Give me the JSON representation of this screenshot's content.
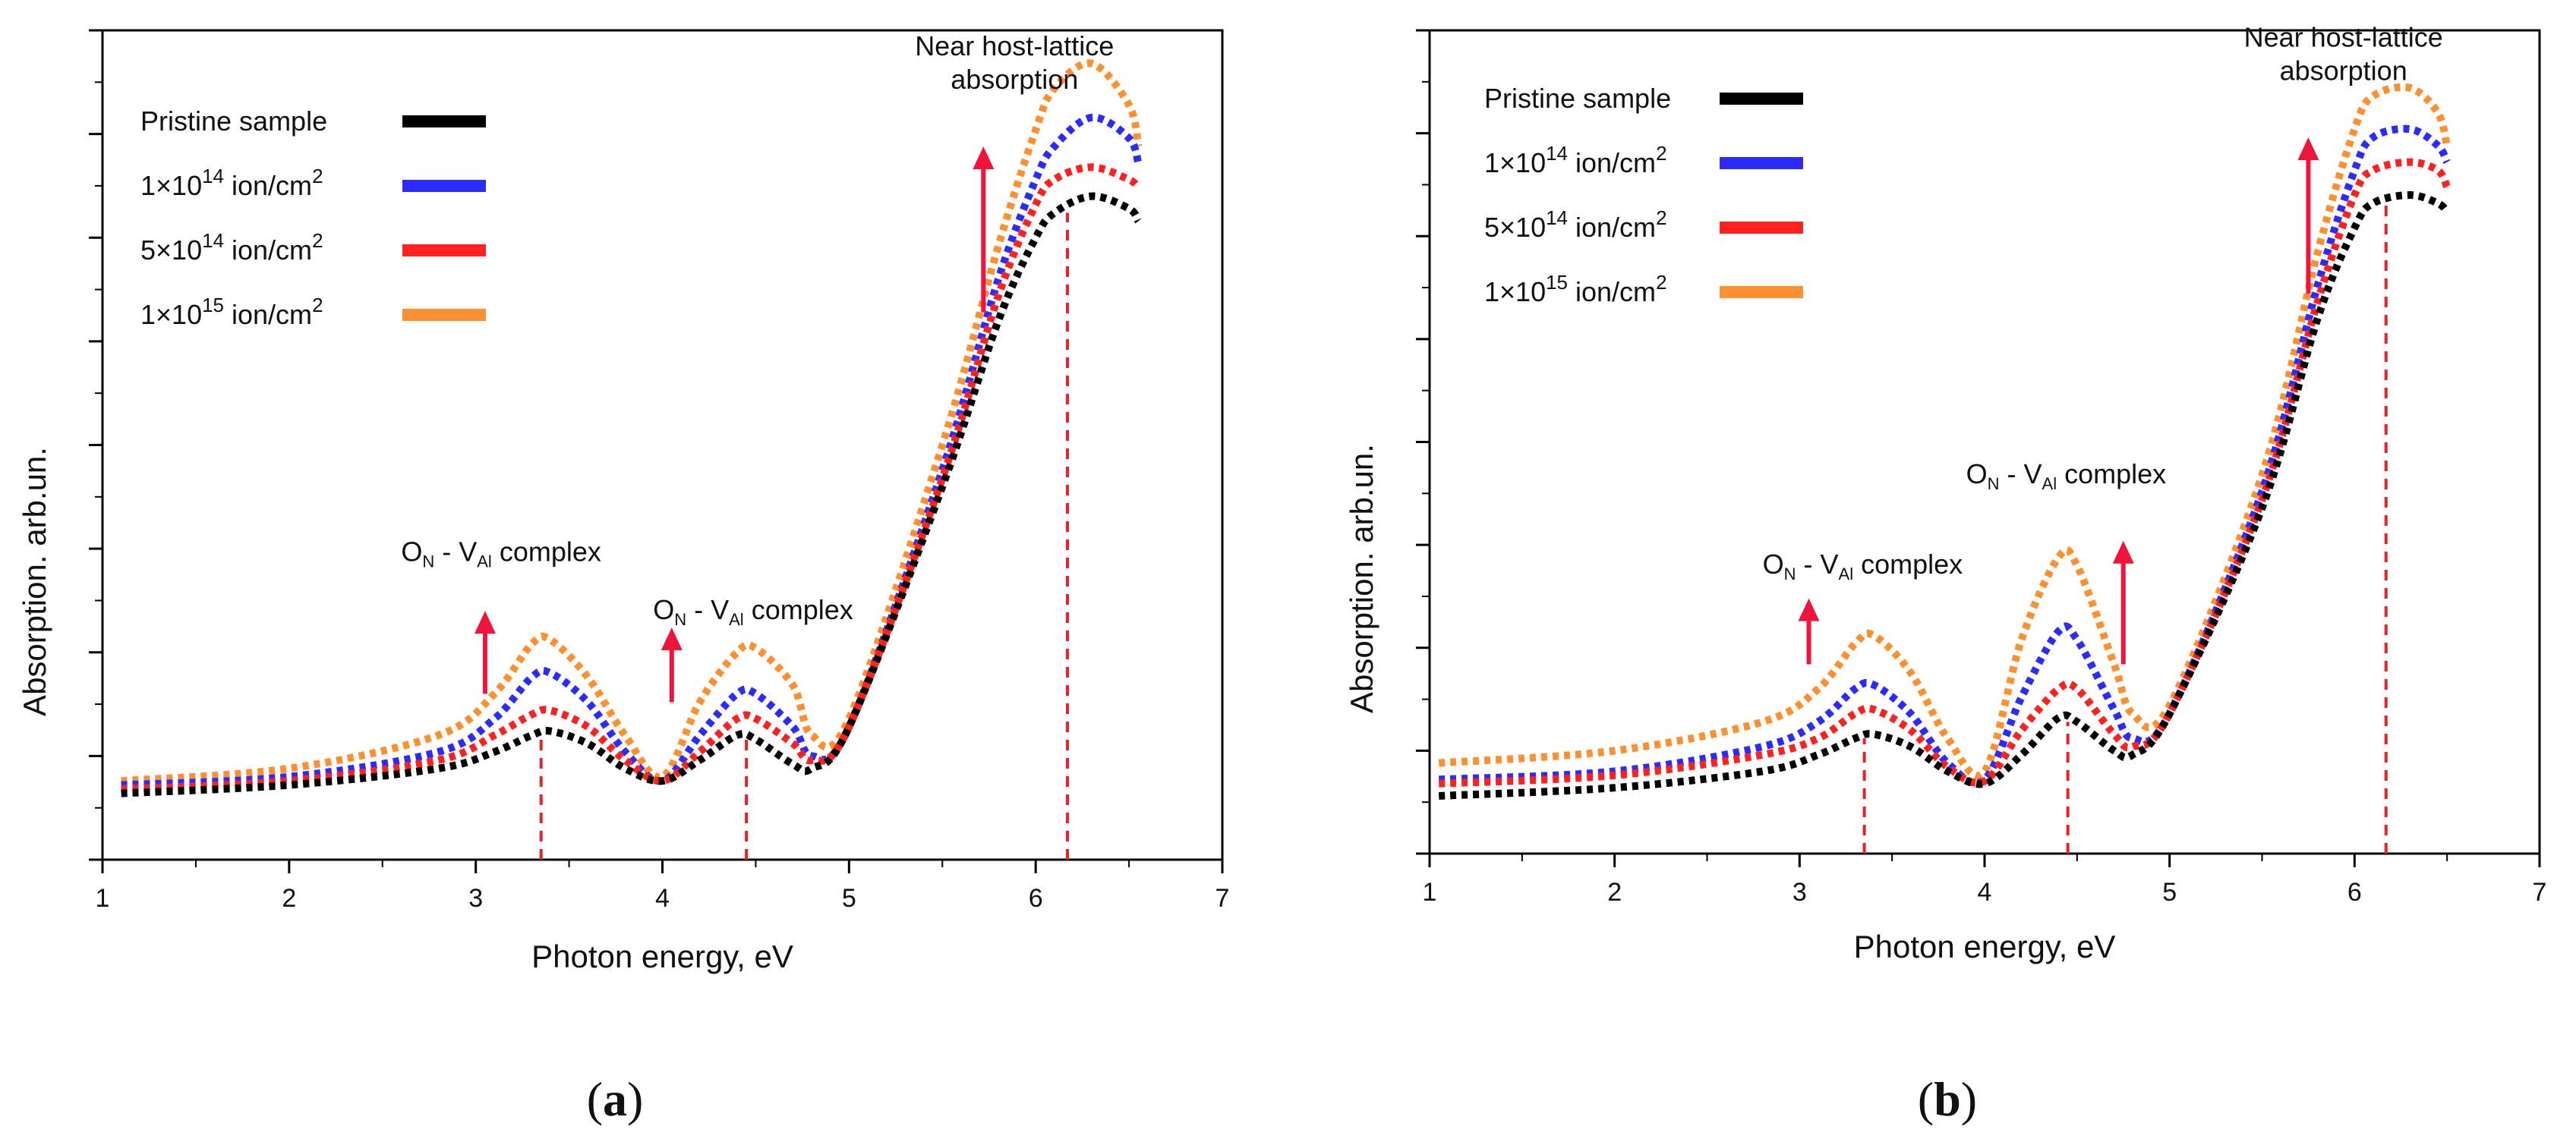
{
  "chart_data": [
    {
      "type": "line",
      "panel_label": "(a)",
      "title": "",
      "xlabel": "Photon energy, eV",
      "ylabel": "Absorption. arb.un.",
      "xlim": [
        1,
        7
      ],
      "ylim": [
        0,
        1
      ],
      "x_ticks": [
        1,
        2,
        3,
        4,
        5,
        6,
        7
      ],
      "legend_position": "top-left",
      "series": [
        {
          "name": "Pristine sample",
          "color": "#000000",
          "x": [
            1.1,
            2.0,
            2.8,
            3.1,
            3.3,
            3.4,
            3.6,
            3.8,
            4.0,
            4.2,
            4.4,
            4.5,
            4.7,
            4.8,
            5.0,
            5.5,
            5.8,
            6.0,
            6.1,
            6.3,
            6.5,
            6.55
          ],
          "y": [
            0.08,
            0.09,
            0.11,
            0.13,
            0.15,
            0.155,
            0.14,
            0.11,
            0.095,
            0.12,
            0.15,
            0.145,
            0.115,
            0.11,
            0.16,
            0.45,
            0.65,
            0.75,
            0.78,
            0.8,
            0.785,
            0.77
          ]
        },
        {
          "name": "1×10^14 ion/cm^2",
          "color": "#2b2bff",
          "x": [
            1.1,
            2.0,
            2.8,
            3.1,
            3.3,
            3.4,
            3.6,
            3.8,
            4.0,
            4.2,
            4.4,
            4.5,
            4.7,
            4.8,
            5.0,
            5.5,
            5.8,
            6.0,
            6.1,
            6.3,
            6.5,
            6.55
          ],
          "y": [
            0.09,
            0.1,
            0.13,
            0.17,
            0.22,
            0.225,
            0.19,
            0.13,
            0.095,
            0.15,
            0.2,
            0.2,
            0.16,
            0.125,
            0.16,
            0.47,
            0.7,
            0.82,
            0.86,
            0.895,
            0.87,
            0.84
          ]
        },
        {
          "name": "5×10^14 ion/cm^2",
          "color": "#ff2020",
          "x": [
            1.1,
            2.0,
            2.8,
            3.1,
            3.3,
            3.4,
            3.6,
            3.8,
            4.0,
            4.2,
            4.4,
            4.5,
            4.7,
            4.8,
            5.0,
            5.5,
            5.8,
            6.0,
            6.1,
            6.3,
            6.5,
            6.55
          ],
          "y": [
            0.085,
            0.095,
            0.12,
            0.15,
            0.175,
            0.18,
            0.16,
            0.12,
            0.095,
            0.13,
            0.17,
            0.17,
            0.14,
            0.12,
            0.16,
            0.46,
            0.68,
            0.79,
            0.82,
            0.835,
            0.82,
            0.81
          ]
        },
        {
          "name": "1×10^15 ion/cm^2",
          "color": "#ff9030",
          "x": [
            1.1,
            2.0,
            2.8,
            3.1,
            3.3,
            3.4,
            3.6,
            3.8,
            4.0,
            4.2,
            4.4,
            4.5,
            4.7,
            4.8,
            5.0,
            5.5,
            5.8,
            6.0,
            6.1,
            6.3,
            6.5,
            6.55
          ],
          "y": [
            0.095,
            0.11,
            0.15,
            0.2,
            0.26,
            0.265,
            0.22,
            0.15,
            0.1,
            0.19,
            0.25,
            0.255,
            0.21,
            0.15,
            0.17,
            0.5,
            0.74,
            0.88,
            0.93,
            0.96,
            0.91,
            0.86
          ]
        }
      ],
      "annotations": [
        {
          "kind": "label",
          "text_main": "O",
          "text_sub1": "N",
          "text_mid": " - V",
          "text_sub2": "Al",
          "text_end": " complex",
          "x": 2.6,
          "y": 0.36
        },
        {
          "kind": "label",
          "text_main": "O",
          "text_sub1": "N",
          "text_mid": " - V",
          "text_sub2": "Al",
          "text_end": " complex",
          "x": 3.95,
          "y": 0.29
        },
        {
          "kind": "label",
          "text_line1": "Near host-lattice",
          "text_line2": "absorption",
          "x": 5.5,
          "y": 0.97
        },
        {
          "kind": "arrow",
          "x": 3.05,
          "y_from": 0.2,
          "y_to": 0.3
        },
        {
          "kind": "arrow",
          "x": 4.05,
          "y_from": 0.19,
          "y_to": 0.28
        },
        {
          "kind": "arrow",
          "x": 5.72,
          "y_from": 0.66,
          "y_to": 0.86
        },
        {
          "kind": "vline",
          "x": 3.35,
          "y_to": 0.15
        },
        {
          "kind": "vline",
          "x": 4.45,
          "y_to": 0.15
        },
        {
          "kind": "vline",
          "x": 6.17,
          "y_to": 0.78
        }
      ]
    },
    {
      "type": "line",
      "panel_label": "(b)",
      "title": "",
      "xlabel": "Photon energy, eV",
      "ylabel": "Absorption. arb.un.",
      "xlim": [
        1,
        7
      ],
      "ylim": [
        0,
        1
      ],
      "x_ticks": [
        1,
        2,
        3,
        4,
        5,
        6,
        7
      ],
      "legend_position": "top-left",
      "series": [
        {
          "name": "Pristine sample",
          "color": "#000000",
          "x": [
            1.05,
            2.0,
            2.8,
            3.1,
            3.3,
            3.4,
            3.6,
            3.8,
            4.0,
            4.2,
            4.4,
            4.5,
            4.7,
            4.8,
            5.0,
            5.5,
            5.8,
            6.0,
            6.1,
            6.3,
            6.45,
            6.5
          ],
          "y": [
            0.07,
            0.08,
            0.1,
            0.12,
            0.14,
            0.145,
            0.13,
            0.1,
            0.085,
            0.12,
            0.165,
            0.16,
            0.125,
            0.12,
            0.17,
            0.42,
            0.65,
            0.76,
            0.79,
            0.8,
            0.79,
            0.78
          ]
        },
        {
          "name": "1×10^14 ion/cm^2",
          "color": "#2b2bff",
          "x": [
            1.05,
            2.0,
            2.8,
            3.1,
            3.3,
            3.4,
            3.6,
            3.8,
            4.0,
            4.2,
            4.4,
            4.5,
            4.7,
            4.8,
            5.0,
            5.5,
            5.8,
            6.0,
            6.1,
            6.3,
            6.45,
            6.5
          ],
          "y": [
            0.09,
            0.1,
            0.13,
            0.16,
            0.2,
            0.205,
            0.17,
            0.11,
            0.09,
            0.19,
            0.27,
            0.26,
            0.175,
            0.14,
            0.17,
            0.44,
            0.69,
            0.83,
            0.87,
            0.88,
            0.86,
            0.84
          ]
        },
        {
          "name": "5×10^14 ion/cm^2",
          "color": "#ff2020",
          "x": [
            1.05,
            2.0,
            2.8,
            3.1,
            3.3,
            3.4,
            3.6,
            3.8,
            4.0,
            4.2,
            4.4,
            4.5,
            4.7,
            4.8,
            5.0,
            5.5,
            5.8,
            6.0,
            6.1,
            6.3,
            6.45,
            6.5
          ],
          "y": [
            0.085,
            0.095,
            0.12,
            0.14,
            0.17,
            0.175,
            0.15,
            0.105,
            0.088,
            0.15,
            0.2,
            0.2,
            0.145,
            0.13,
            0.17,
            0.43,
            0.67,
            0.8,
            0.83,
            0.84,
            0.83,
            0.81
          ]
        },
        {
          "name": "1×10^15 ion/cm^2",
          "color": "#ff9030",
          "x": [
            1.05,
            2.0,
            2.8,
            3.1,
            3.3,
            3.4,
            3.6,
            3.8,
            4.0,
            4.2,
            4.4,
            4.5,
            4.7,
            4.8,
            5.0,
            5.5,
            5.8,
            6.0,
            6.1,
            6.3,
            6.45,
            6.5
          ],
          "y": [
            0.11,
            0.125,
            0.16,
            0.2,
            0.255,
            0.265,
            0.22,
            0.14,
            0.1,
            0.26,
            0.36,
            0.35,
            0.23,
            0.17,
            0.18,
            0.46,
            0.73,
            0.88,
            0.92,
            0.93,
            0.9,
            0.86
          ]
        }
      ],
      "annotations": [
        {
          "kind": "label",
          "text_main": "O",
          "text_sub1": "N",
          "text_mid": " - V",
          "text_sub2": "Al",
          "text_end": " complex",
          "x": 2.8,
          "y": 0.34
        },
        {
          "kind": "label",
          "text_main": "O",
          "text_sub1": "N",
          "text_mid": " - V",
          "text_sub2": "Al",
          "text_end": " complex",
          "x": 3.9,
          "y": 0.45
        },
        {
          "kind": "label",
          "text_line1": "Near host-lattice",
          "text_line2": "absorption",
          "x": 5.55,
          "y": 0.98
        },
        {
          "kind": "arrow",
          "x": 3.05,
          "y_from": 0.23,
          "y_to": 0.31
        },
        {
          "kind": "arrow",
          "x": 4.75,
          "y_from": 0.23,
          "y_to": 0.38
        },
        {
          "kind": "arrow",
          "x": 5.75,
          "y_from": 0.68,
          "y_to": 0.87
        },
        {
          "kind": "vline",
          "x": 3.35,
          "y_to": 0.14
        },
        {
          "kind": "vline",
          "x": 4.45,
          "y_to": 0.16
        },
        {
          "kind": "vline",
          "x": 6.17,
          "y_to": 0.79
        }
      ]
    }
  ]
}
